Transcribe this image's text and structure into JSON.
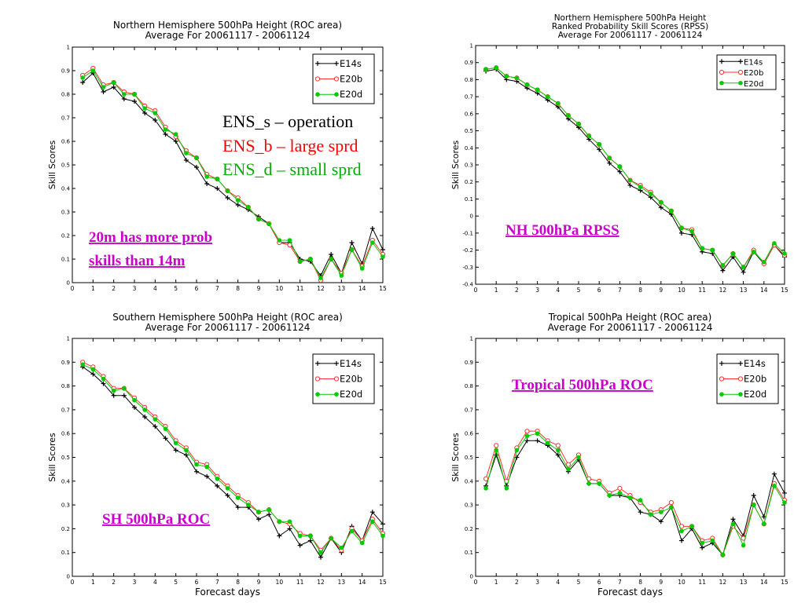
{
  "chart_data": [
    {
      "type": "line",
      "title": "Northern Hemisphere 500hPa Height (ROC area)",
      "subtitle": "Average For 20061117 - 20061124",
      "xlabel": "",
      "ylabel": "Skill Scores",
      "xlim": [
        0,
        15
      ],
      "ylim": [
        0,
        1
      ],
      "xticks": [
        0,
        1,
        2,
        3,
        4,
        5,
        6,
        7,
        8,
        9,
        10,
        11,
        12,
        13,
        14,
        15
      ],
      "yticks": [
        0,
        0.1,
        0.2,
        0.3,
        0.4,
        0.5,
        0.6,
        0.7,
        0.8,
        0.9,
        1
      ],
      "ytick_labels": [
        "0",
        "0.1",
        "0.2",
        "0.3",
        "0.4",
        "0.5",
        "0.6",
        "0.7",
        "0.8",
        "0.9",
        "1"
      ],
      "grid": false,
      "legend_position": "top-right",
      "x": [
        0.5,
        1,
        1.5,
        2,
        2.5,
        3,
        3.5,
        4,
        4.5,
        5,
        5.5,
        6,
        6.5,
        7,
        7.5,
        8,
        8.5,
        9,
        9.5,
        10,
        10.5,
        11,
        11.5,
        12,
        12.5,
        13,
        13.5,
        14,
        14.5,
        15
      ],
      "series": [
        {
          "name": "E14s",
          "color": "#000000",
          "marker": "plus",
          "values": [
            0.85,
            0.89,
            0.81,
            0.83,
            0.78,
            0.77,
            0.72,
            0.69,
            0.63,
            0.6,
            0.52,
            0.49,
            0.42,
            0.4,
            0.36,
            0.33,
            0.31,
            0.28,
            0.25,
            0.17,
            0.17,
            0.1,
            0.09,
            0.03,
            0.12,
            0.04,
            0.17,
            0.08,
            0.23,
            0.14
          ]
        },
        {
          "name": "E20b",
          "color": "#ff3030",
          "marker": "open-circle",
          "values": [
            0.88,
            0.91,
            0.84,
            0.85,
            0.81,
            0.8,
            0.75,
            0.73,
            0.66,
            0.62,
            0.56,
            0.53,
            0.46,
            0.44,
            0.39,
            0.36,
            0.32,
            0.27,
            0.25,
            0.17,
            0.16,
            0.09,
            0.1,
            0.01,
            0.1,
            0.04,
            0.14,
            0.07,
            0.18,
            0.12
          ]
        },
        {
          "name": "E20d",
          "color": "#00cc00",
          "marker": "filled-circle",
          "values": [
            0.87,
            0.9,
            0.83,
            0.85,
            0.8,
            0.8,
            0.74,
            0.72,
            0.65,
            0.63,
            0.55,
            0.53,
            0.45,
            0.44,
            0.39,
            0.35,
            0.32,
            0.27,
            0.25,
            0.18,
            0.18,
            0.09,
            0.1,
            0.02,
            0.1,
            0.03,
            0.14,
            0.06,
            0.17,
            0.11
          ]
        }
      ],
      "annotations": [
        {
          "text": "ENS_s – operation",
          "color": "#000000"
        },
        {
          "text": "ENS_b – large sprd",
          "color": "#ff0000"
        },
        {
          "text": "ENS_d – small sprd",
          "color": "#00b000"
        },
        {
          "text": "20m has more prob",
          "color": "#cc00cc",
          "underline": true
        },
        {
          "text": "skills than 14m",
          "color": "#cc00cc",
          "underline": true
        }
      ]
    },
    {
      "type": "line",
      "title": "Northern Hemisphere 500hPa Height",
      "title2": "Ranked Probability Skill Scores (RPSS)",
      "subtitle": "Average For 20061117 - 20061124",
      "xlabel": "",
      "ylabel": "Skill Scores",
      "xlim": [
        0,
        15
      ],
      "ylim": [
        -0.4,
        1
      ],
      "xticks": [
        0,
        1,
        2,
        3,
        4,
        5,
        6,
        7,
        8,
        9,
        10,
        11,
        12,
        13,
        14,
        15
      ],
      "yticks": [
        -0.4,
        -0.3,
        -0.2,
        -0.1,
        0,
        0.1,
        0.2,
        0.3,
        0.4,
        0.5,
        0.6,
        0.7,
        0.8,
        0.9,
        1
      ],
      "ytick_labels": [
        "-0.4",
        "-0.3",
        "-0.2",
        "-0.1",
        "0",
        "0.1",
        "0.2",
        "0.3",
        "0.4",
        "0.5",
        "0.6",
        "0.7",
        "0.8",
        "0.9",
        "1"
      ],
      "grid": false,
      "legend_position": "top-right",
      "x": [
        0.5,
        1,
        1.5,
        2,
        2.5,
        3,
        3.5,
        4,
        4.5,
        5,
        5.5,
        6,
        6.5,
        7,
        7.5,
        8,
        8.5,
        9,
        9.5,
        10,
        10.5,
        11,
        11.5,
        12,
        12.5,
        13,
        13.5,
        14,
        14.5,
        15
      ],
      "series": [
        {
          "name": "E14s",
          "color": "#000000",
          "marker": "plus",
          "values": [
            0.85,
            0.86,
            0.8,
            0.79,
            0.75,
            0.72,
            0.68,
            0.64,
            0.57,
            0.52,
            0.45,
            0.39,
            0.31,
            0.26,
            0.18,
            0.15,
            0.11,
            0.05,
            0.01,
            -0.1,
            -0.11,
            -0.21,
            -0.22,
            -0.32,
            -0.24,
            -0.33,
            -0.21,
            -0.28,
            -0.17,
            -0.24
          ]
        },
        {
          "name": "E20b",
          "color": "#ff3030",
          "marker": "open-circle",
          "values": [
            0.86,
            0.87,
            0.82,
            0.81,
            0.77,
            0.74,
            0.7,
            0.66,
            0.59,
            0.54,
            0.47,
            0.42,
            0.34,
            0.29,
            0.21,
            0.18,
            0.14,
            0.08,
            0.03,
            -0.07,
            -0.08,
            -0.19,
            -0.2,
            -0.29,
            -0.22,
            -0.3,
            -0.2,
            -0.28,
            -0.17,
            -0.23
          ]
        },
        {
          "name": "E20d",
          "color": "#00cc00",
          "marker": "filled-circle",
          "values": [
            0.86,
            0.87,
            0.82,
            0.81,
            0.77,
            0.74,
            0.7,
            0.66,
            0.59,
            0.54,
            0.47,
            0.42,
            0.34,
            0.29,
            0.21,
            0.17,
            0.13,
            0.08,
            0.03,
            -0.07,
            -0.09,
            -0.19,
            -0.2,
            -0.29,
            -0.22,
            -0.3,
            -0.21,
            -0.27,
            -0.16,
            -0.22
          ]
        }
      ],
      "annotations": [
        {
          "text": "NH 500hPa RPSS",
          "color": "#cc00cc",
          "underline": true
        }
      ]
    },
    {
      "type": "line",
      "title": "Southern Hemisphere 500hPa Height (ROC area)",
      "subtitle": "Average For 20061117 - 20061124",
      "xlabel": "Forecast days",
      "ylabel": "Skill Scores",
      "xlim": [
        0,
        15
      ],
      "ylim": [
        0,
        1
      ],
      "xticks": [
        0,
        1,
        2,
        3,
        4,
        5,
        6,
        7,
        8,
        9,
        10,
        11,
        12,
        13,
        14,
        15
      ],
      "yticks": [
        0,
        0.1,
        0.2,
        0.3,
        0.4,
        0.5,
        0.6,
        0.7,
        0.8,
        0.9,
        1
      ],
      "ytick_labels": [
        "0",
        "0.1",
        "0.2",
        "0.3",
        "0.4",
        "0.5",
        "0.6",
        "0.7",
        "0.8",
        "0.9",
        "1"
      ],
      "grid": false,
      "legend_position": "top-right",
      "x": [
        0.5,
        1,
        1.5,
        2,
        2.5,
        3,
        3.5,
        4,
        4.5,
        5,
        5.5,
        6,
        6.5,
        7,
        7.5,
        8,
        8.5,
        9,
        9.5,
        10,
        10.5,
        11,
        11.5,
        12,
        12.5,
        13,
        13.5,
        14,
        14.5,
        15
      ],
      "series": [
        {
          "name": "E14s",
          "color": "#000000",
          "marker": "plus",
          "values": [
            0.88,
            0.85,
            0.81,
            0.76,
            0.76,
            0.71,
            0.67,
            0.63,
            0.58,
            0.53,
            0.51,
            0.44,
            0.42,
            0.38,
            0.34,
            0.29,
            0.29,
            0.24,
            0.26,
            0.17,
            0.2,
            0.13,
            0.15,
            0.08,
            0.16,
            0.1,
            0.21,
            0.15,
            0.27,
            0.22
          ]
        },
        {
          "name": "E20b",
          "color": "#ff3030",
          "marker": "open-circle",
          "values": [
            0.9,
            0.88,
            0.84,
            0.79,
            0.79,
            0.75,
            0.71,
            0.67,
            0.63,
            0.57,
            0.54,
            0.48,
            0.47,
            0.42,
            0.38,
            0.34,
            0.31,
            0.27,
            0.28,
            0.23,
            0.22,
            0.18,
            0.17,
            0.11,
            0.16,
            0.11,
            0.2,
            0.15,
            0.24,
            0.18
          ]
        },
        {
          "name": "E20d",
          "color": "#00cc00",
          "marker": "filled-circle",
          "values": [
            0.89,
            0.87,
            0.83,
            0.78,
            0.79,
            0.74,
            0.7,
            0.66,
            0.62,
            0.56,
            0.53,
            0.47,
            0.46,
            0.41,
            0.37,
            0.33,
            0.3,
            0.27,
            0.28,
            0.23,
            0.23,
            0.17,
            0.17,
            0.1,
            0.16,
            0.12,
            0.19,
            0.14,
            0.23,
            0.17
          ]
        }
      ],
      "annotations": [
        {
          "text": "SH 500hPa ROC",
          "color": "#cc00cc",
          "underline": true
        }
      ]
    },
    {
      "type": "line",
      "title": "Tropical 500hPa Height (ROC area)",
      "subtitle": "Average For 20061117 - 20061124",
      "xlabel": "Forecast days",
      "ylabel": "Skill Scores",
      "xlim": [
        0,
        15
      ],
      "ylim": [
        0,
        1
      ],
      "xticks": [
        0,
        1,
        2,
        3,
        4,
        5,
        6,
        7,
        8,
        9,
        10,
        11,
        12,
        13,
        14,
        15
      ],
      "yticks": [
        0,
        0.1,
        0.2,
        0.3,
        0.4,
        0.5,
        0.6,
        0.7,
        0.8,
        0.9,
        1
      ],
      "ytick_labels": [
        "0",
        "0.1",
        "0.2",
        "0.3",
        "0.4",
        "0.5",
        "0.6",
        "0.7",
        "0.8",
        "0.9",
        "1"
      ],
      "grid": false,
      "legend_position": "top-right",
      "x": [
        0.5,
        1,
        1.5,
        2,
        2.5,
        3,
        3.5,
        4,
        4.5,
        5,
        5.5,
        6,
        6.5,
        7,
        7.5,
        8,
        8.5,
        9,
        9.5,
        10,
        10.5,
        11,
        11.5,
        12,
        12.5,
        13,
        13.5,
        14,
        14.5,
        15
      ],
      "series": [
        {
          "name": "E14s",
          "color": "#000000",
          "marker": "plus",
          "values": [
            0.38,
            0.51,
            0.38,
            0.5,
            0.57,
            0.57,
            0.55,
            0.51,
            0.44,
            0.49,
            0.39,
            0.39,
            0.34,
            0.34,
            0.33,
            0.27,
            0.26,
            0.23,
            0.29,
            0.15,
            0.2,
            0.12,
            0.14,
            0.09,
            0.24,
            0.17,
            0.34,
            0.25,
            0.43,
            0.35
          ]
        },
        {
          "name": "E20b",
          "color": "#ff3030",
          "marker": "open-circle",
          "values": [
            0.41,
            0.55,
            0.4,
            0.54,
            0.61,
            0.61,
            0.57,
            0.55,
            0.47,
            0.51,
            0.41,
            0.4,
            0.35,
            0.37,
            0.34,
            0.31,
            0.27,
            0.28,
            0.31,
            0.21,
            0.21,
            0.15,
            0.16,
            0.09,
            0.21,
            0.16,
            0.3,
            0.22,
            0.39,
            0.32
          ]
        },
        {
          "name": "E20d",
          "color": "#00cc00",
          "marker": "filled-circle",
          "values": [
            0.37,
            0.53,
            0.37,
            0.53,
            0.59,
            0.6,
            0.56,
            0.53,
            0.45,
            0.5,
            0.39,
            0.39,
            0.34,
            0.35,
            0.33,
            0.32,
            0.26,
            0.27,
            0.29,
            0.19,
            0.21,
            0.14,
            0.15,
            0.09,
            0.22,
            0.13,
            0.3,
            0.22,
            0.38,
            0.31
          ]
        }
      ],
      "annotations": [
        {
          "text": "Tropical 500hPa ROC",
          "color": "#cc00cc",
          "underline": true
        }
      ]
    }
  ]
}
